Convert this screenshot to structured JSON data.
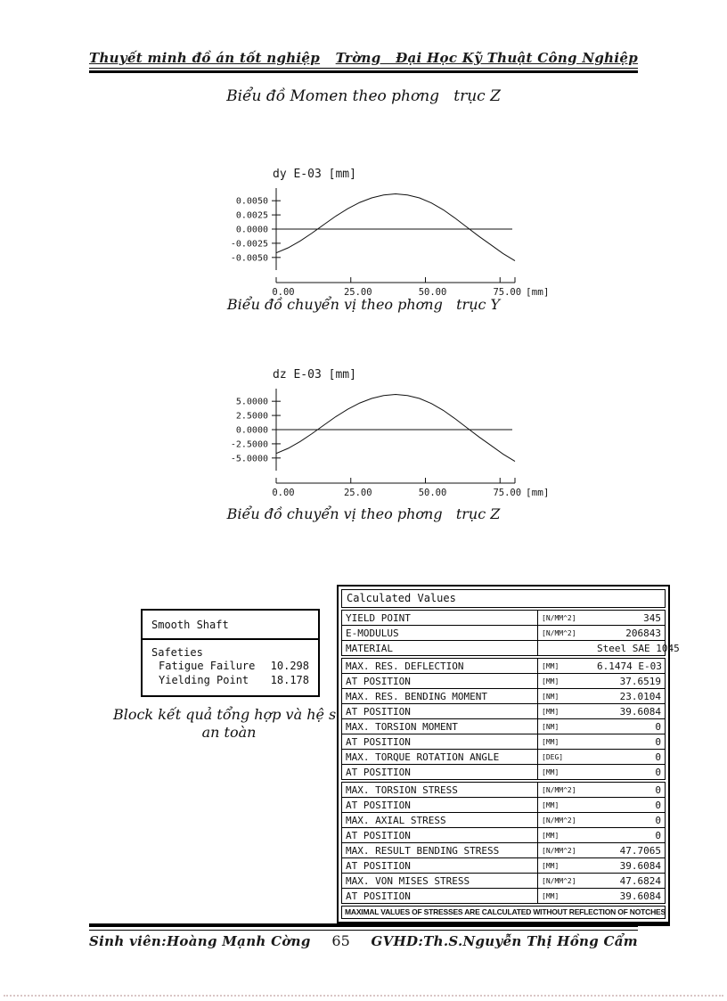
{
  "page": {
    "header": {
      "left": "Thuyết minh đồ án tốt nghiệp",
      "right": "Trờng   Đại Học Kỹ Thuật Công Nghiệp"
    },
    "title": "Biểu đồ Momen theo phơng   trục Z",
    "captions": {
      "chart1": "Biểu đồ chuyển vị theo phơng   trục Y",
      "chart2": "Biểu đồ chuyển vị theo phơng   trục Z",
      "block": "Block kết quả tổng hợp và hệ số an toàn"
    },
    "footer": {
      "left": "Sinh viên:Hoàng Mạnh Cờng",
      "page_number": "65",
      "right": "GVHD:Th.S.Nguyễn Thị Hồng Cẩm"
    }
  },
  "chart_data": [
    {
      "type": "line",
      "title": "dy E-03 [mm]",
      "xlabel": "[mm]",
      "xlim": [
        0,
        80
      ],
      "ylim": [
        -0.0066,
        0.0066
      ],
      "x_ticks": [
        "0.00",
        "25.00",
        "50.00",
        "75.00"
      ],
      "x_tick_values": [
        0,
        25,
        50,
        75
      ],
      "y_ticks": [
        "0.0050",
        "0.0025",
        "0.0000",
        "-0.0025",
        "-0.0050"
      ],
      "y_tick_values": [
        0.005,
        0.0025,
        0,
        -0.0025,
        -0.005
      ],
      "grid": false,
      "legend": "none",
      "x": [
        0,
        4,
        8,
        12,
        16,
        20,
        24,
        28,
        32,
        36,
        40,
        44,
        48,
        52,
        56,
        60,
        64,
        68,
        72,
        76,
        80
      ],
      "y": [
        -0.0042,
        -0.0033,
        -0.0021,
        -0.0007,
        0.0008,
        0.0023,
        0.0036,
        0.0047,
        0.0055,
        0.006,
        0.0062,
        0.006,
        0.0055,
        0.0046,
        0.0034,
        0.0019,
        0.0003,
        -0.0013,
        -0.0028,
        -0.0043,
        -0.0056
      ]
    },
    {
      "type": "line",
      "title": "dz E-03 [mm]",
      "xlabel": "[mm]",
      "xlim": [
        0,
        80
      ],
      "ylim": [
        -6.6,
        6.6
      ],
      "x_ticks": [
        "0.00",
        "25.00",
        "50.00",
        "75.00"
      ],
      "x_tick_values": [
        0,
        25,
        50,
        75
      ],
      "y_ticks": [
        "5.0000",
        "2.5000",
        "0.0000",
        "-2.5000",
        "-5.0000"
      ],
      "y_tick_values": [
        5,
        2.5,
        0,
        -2.5,
        -5
      ],
      "grid": false,
      "legend": "none",
      "x": [
        0,
        4,
        8,
        12,
        16,
        20,
        24,
        28,
        32,
        36,
        40,
        44,
        48,
        52,
        56,
        60,
        64,
        68,
        72,
        76,
        80
      ],
      "y": [
        -4.2,
        -3.3,
        -2.1,
        -0.7,
        0.8,
        2.3,
        3.6,
        4.7,
        5.5,
        6.0,
        6.2,
        6.0,
        5.5,
        4.6,
        3.4,
        1.9,
        0.3,
        -1.3,
        -2.8,
        -4.3,
        -5.6
      ]
    }
  ],
  "safety_block": {
    "title": "Smooth Shaft",
    "section": "Safeties",
    "rows": [
      {
        "label": "Fatigue Failure",
        "value": "10.298"
      },
      {
        "label": "Yielding Point",
        "value": "18.178"
      }
    ]
  },
  "table": {
    "title": "Calculated Values",
    "groups": [
      {
        "rows": [
          {
            "name": "YIELD POINT",
            "unit": "[N/MM^2]",
            "value": "345"
          },
          {
            "name": "E-MODULUS",
            "unit": "[N/MM^2]",
            "value": "206843"
          },
          {
            "name": "MATERIAL",
            "unit": "",
            "value": "Steel SAE 1045"
          }
        ]
      },
      {
        "rows": [
          {
            "name": "MAX. RES. DEFLECTION",
            "unit": "[MM]",
            "value": "6.1474 E-03"
          },
          {
            "name": "AT POSITION",
            "unit": "[MM]",
            "value": "37.6519"
          },
          {
            "name": "MAX. RES. BENDING MOMENT",
            "unit": "[NM]",
            "value": "23.0104"
          },
          {
            "name": "AT POSITION",
            "unit": "[MM]",
            "value": "39.6084"
          },
          {
            "name": "MAX. TORSION MOMENT",
            "unit": "[NM]",
            "value": "0"
          },
          {
            "name": "AT POSITION",
            "unit": "[MM]",
            "value": "0"
          },
          {
            "name": "MAX. TORQUE ROTATION ANGLE",
            "unit": "[DEG]",
            "value": "0"
          },
          {
            "name": "AT POSITION",
            "unit": "[MM]",
            "value": "0"
          }
        ]
      },
      {
        "rows": [
          {
            "name": "MAX. TORSION STRESS",
            "unit": "[N/MM^2]",
            "value": "0"
          },
          {
            "name": "AT POSITION",
            "unit": "[MM]",
            "value": "0"
          },
          {
            "name": "MAX. AXIAL STRESS",
            "unit": "[N/MM^2]",
            "value": "0"
          },
          {
            "name": "AT POSITION",
            "unit": "[MM]",
            "value": "0"
          },
          {
            "name": "MAX. RESULT BENDING STRESS",
            "unit": "[N/MM^2]",
            "value": "47.7065"
          },
          {
            "name": "AT POSITION",
            "unit": "[MM]",
            "value": "39.6084"
          },
          {
            "name": "MAX. VON MISES STRESS",
            "unit": "[N/MM^2]",
            "value": "47.6824"
          },
          {
            "name": "AT POSITION",
            "unit": "[MM]",
            "value": "39.6084"
          }
        ]
      }
    ],
    "note": "MAXIMAL VALUES OF STRESSES ARE CALCULATED WITHOUT REFLECTION OF NOTCHES"
  },
  "colors": {
    "ink": "#1a1a1a",
    "dotted_rule": "#d9c5c5"
  }
}
